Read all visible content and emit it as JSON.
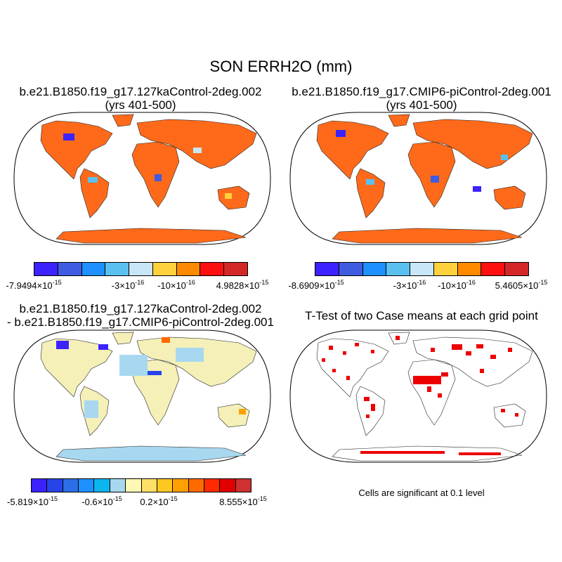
{
  "main_title": "SON ERRH2O (mm)",
  "panels": {
    "p1": {
      "line1": "b.e21.B1850.f19_g17.127kaControl-2deg.002",
      "line2": "(yrs 401-500)"
    },
    "p2": {
      "line1": "b.e21.B1850.f19_g17.CMIP6-piControl-2deg.001",
      "line2": "(yrs 401-500)"
    },
    "p3": {
      "line1": "b.e21.B1850.f19_g17.127kaControl-2deg.002",
      "line2": "- b.e21.B1850.f19_g17.CMIP6-piControl-2deg.001"
    },
    "p4": {
      "line1": "T-Test of two Case means at each grid point"
    }
  },
  "colorbars": {
    "cb1": {
      "colors": [
        "#3c22ff",
        "#3f5ce0",
        "#1e90ff",
        "#5ac0f0",
        "#c8e6f8",
        "#ffd23c",
        "#ff8a00",
        "#ff1010",
        "#d42828"
      ],
      "labels": [
        {
          "mant": "-7.9494",
          "exp": "-15"
        },
        {
          "mant": "-3",
          "exp": "-16"
        },
        {
          "mant": "-10",
          "exp": "-16"
        },
        {
          "mant": "4.9828",
          "exp": "-15"
        }
      ]
    },
    "cb2": {
      "colors": [
        "#3c22ff",
        "#3f5ce0",
        "#1e90ff",
        "#5ac0f0",
        "#c8e6f8",
        "#ffd23c",
        "#ff8a00",
        "#ff1010",
        "#d42828"
      ],
      "labels": [
        {
          "mant": "-8.6909",
          "exp": "-15"
        },
        {
          "mant": "-3",
          "exp": "-16"
        },
        {
          "mant": "-10",
          "exp": "-16"
        },
        {
          "mant": "5.4605",
          "exp": "-15"
        }
      ]
    },
    "cb3": {
      "colors": [
        "#3c22ff",
        "#2744e8",
        "#2d6ee8",
        "#1e90ff",
        "#0cb4f0",
        "#a8d8f0",
        "#fff8b4",
        "#ffe066",
        "#ffc820",
        "#ffa000",
        "#ff6a00",
        "#ff2a00",
        "#e00000",
        "#d03030"
      ],
      "labels": [
        {
          "mant": "-5.819",
          "exp": "-15"
        },
        {
          "mant": "-0.6",
          "exp": "-15"
        },
        {
          "mant": "0.2",
          "exp": "-15"
        },
        {
          "mant": "8.555",
          "exp": "-15"
        }
      ]
    }
  },
  "significance_note": "Cells are significant at 0.1 level"
}
